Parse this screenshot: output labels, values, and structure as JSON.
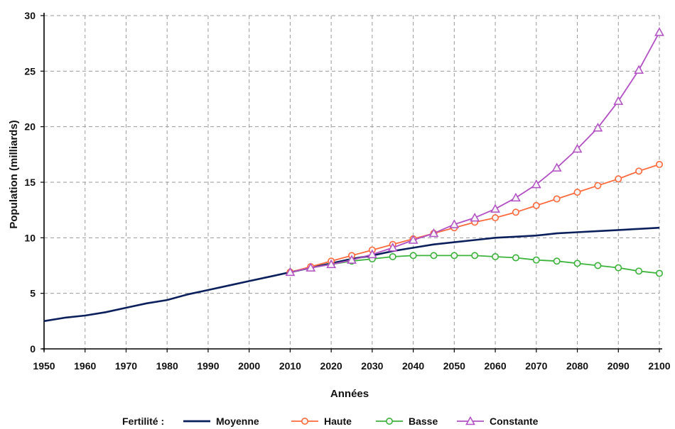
{
  "chart_data": {
    "type": "line",
    "xlabel": "Années",
    "ylabel": "Population (milliards)",
    "xlim": [
      1950,
      2100
    ],
    "ylim": [
      0,
      30
    ],
    "x_ticks": [
      1950,
      1960,
      1970,
      1980,
      1990,
      2000,
      2010,
      2020,
      2030,
      2040,
      2050,
      2060,
      2070,
      2080,
      2090,
      2100
    ],
    "y_ticks": [
      0,
      5,
      10,
      15,
      20,
      25,
      30
    ],
    "grid": true,
    "legend_title": "Fertilité :",
    "legend_position": "bottom",
    "series": [
      {
        "name": "Moyenne",
        "color": "#0a1f5c",
        "marker": "none",
        "x": [
          1950,
          1955,
          1960,
          1965,
          1970,
          1975,
          1980,
          1985,
          1990,
          1995,
          2000,
          2005,
          2010,
          2015,
          2020,
          2025,
          2030,
          2035,
          2040,
          2045,
          2050,
          2055,
          2060,
          2065,
          2070,
          2075,
          2080,
          2085,
          2090,
          2095,
          2100
        ],
        "values": [
          2.5,
          2.8,
          3.0,
          3.3,
          3.7,
          4.1,
          4.4,
          4.9,
          5.3,
          5.7,
          6.1,
          6.5,
          6.9,
          7.3,
          7.7,
          8.1,
          8.4,
          8.8,
          9.1,
          9.4,
          9.6,
          9.8,
          10.0,
          10.1,
          10.2,
          10.4,
          10.5,
          10.6,
          10.7,
          10.8,
          10.9
        ]
      },
      {
        "name": "Haute",
        "color": "#ff6a3d",
        "marker": "circle",
        "x": [
          2010,
          2015,
          2020,
          2025,
          2030,
          2035,
          2040,
          2045,
          2050,
          2055,
          2060,
          2065,
          2070,
          2075,
          2080,
          2085,
          2090,
          2095,
          2100
        ],
        "values": [
          6.9,
          7.4,
          7.9,
          8.4,
          8.9,
          9.4,
          9.9,
          10.4,
          10.9,
          11.4,
          11.8,
          12.3,
          12.9,
          13.5,
          14.1,
          14.7,
          15.3,
          16.0,
          16.6
        ]
      },
      {
        "name": "Basse",
        "color": "#3cb43c",
        "marker": "circle",
        "x": [
          2010,
          2015,
          2020,
          2025,
          2030,
          2035,
          2040,
          2045,
          2050,
          2055,
          2060,
          2065,
          2070,
          2075,
          2080,
          2085,
          2090,
          2095,
          2100
        ],
        "values": [
          6.9,
          7.3,
          7.6,
          7.9,
          8.1,
          8.3,
          8.4,
          8.4,
          8.4,
          8.4,
          8.3,
          8.2,
          8.0,
          7.9,
          7.7,
          7.5,
          7.3,
          7.0,
          6.8
        ]
      },
      {
        "name": "Constante",
        "color": "#b24fc4",
        "marker": "triangle",
        "x": [
          2010,
          2015,
          2020,
          2025,
          2030,
          2035,
          2040,
          2045,
          2050,
          2055,
          2060,
          2065,
          2070,
          2075,
          2080,
          2085,
          2090,
          2095,
          2100
        ],
        "values": [
          6.9,
          7.3,
          7.6,
          8.0,
          8.5,
          9.1,
          9.8,
          10.4,
          11.2,
          11.8,
          12.6,
          13.6,
          14.8,
          16.3,
          18.0,
          19.9,
          22.3,
          25.1,
          28.5
        ]
      }
    ]
  }
}
